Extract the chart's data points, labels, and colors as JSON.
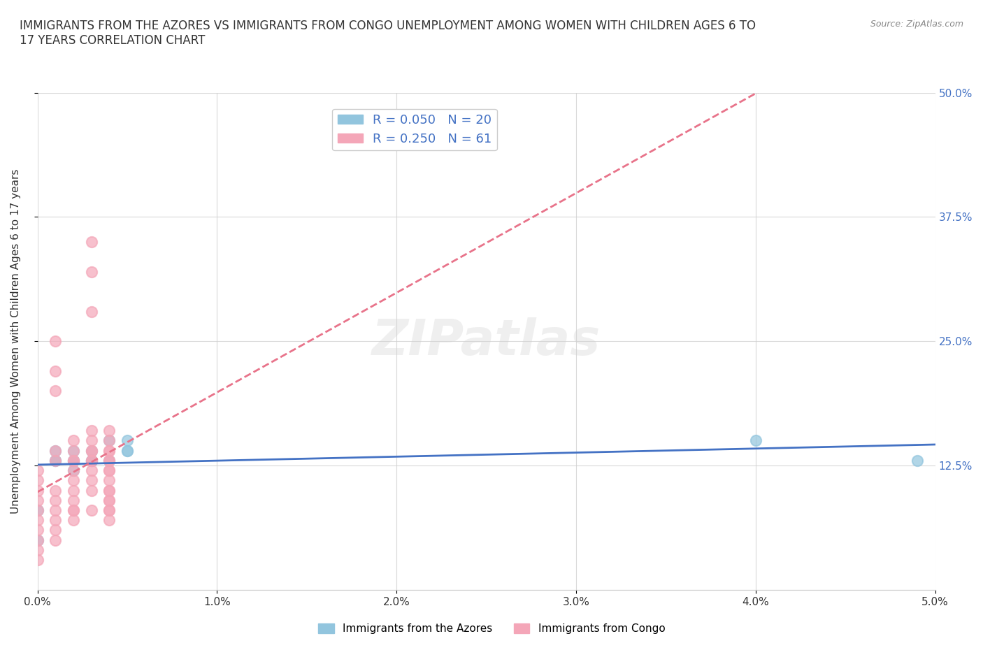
{
  "title": "IMMIGRANTS FROM THE AZORES VS IMMIGRANTS FROM CONGO UNEMPLOYMENT AMONG WOMEN WITH CHILDREN AGES 6 TO\n17 YEARS CORRELATION CHART",
  "source": "Source: ZipAtlas.com",
  "xlabel": "",
  "ylabel": "Unemployment Among Women with Children Ages 6 to 17 years",
  "xlim": [
    0.0,
    0.05
  ],
  "ylim": [
    0.0,
    0.5
  ],
  "xtick_labels": [
    "0.0%",
    "1.0%",
    "2.0%",
    "3.0%",
    "4.0%",
    "5.0%"
  ],
  "xtick_values": [
    0.0,
    0.01,
    0.02,
    0.03,
    0.04,
    0.05
  ],
  "ytick_labels": [
    "12.5%",
    "25.0%",
    "37.5%",
    "50.0%"
  ],
  "ytick_values": [
    0.125,
    0.25,
    0.375,
    0.5
  ],
  "watermark": "ZIPatlas",
  "legend_azores_R": "0.050",
  "legend_azores_N": "20",
  "legend_congo_R": "0.250",
  "legend_congo_N": "61",
  "azores_color": "#92c5de",
  "congo_color": "#f4a6b8",
  "azores_line_color": "#4472c4",
  "congo_line_color": "#e8738a",
  "grid_color": "#d0d0d0",
  "azores_x": [
    0.0,
    0.0,
    0.001,
    0.001,
    0.001,
    0.002,
    0.002,
    0.002,
    0.002,
    0.003,
    0.003,
    0.003,
    0.003,
    0.004,
    0.004,
    0.005,
    0.005,
    0.005,
    0.04,
    0.049
  ],
  "azores_y": [
    0.08,
    0.05,
    0.13,
    0.13,
    0.14,
    0.14,
    0.13,
    0.12,
    0.13,
    0.13,
    0.13,
    0.14,
    0.13,
    0.13,
    0.15,
    0.14,
    0.15,
    0.14,
    0.15,
    0.13
  ],
  "congo_x": [
    0.0,
    0.0,
    0.0,
    0.0,
    0.0,
    0.0,
    0.0,
    0.0,
    0.0,
    0.0,
    0.001,
    0.001,
    0.001,
    0.001,
    0.001,
    0.001,
    0.001,
    0.001,
    0.001,
    0.001,
    0.001,
    0.002,
    0.002,
    0.002,
    0.002,
    0.002,
    0.002,
    0.002,
    0.002,
    0.002,
    0.002,
    0.002,
    0.003,
    0.003,
    0.003,
    0.003,
    0.003,
    0.003,
    0.003,
    0.003,
    0.003,
    0.003,
    0.003,
    0.003,
    0.003,
    0.004,
    0.004,
    0.004,
    0.004,
    0.004,
    0.004,
    0.004,
    0.004,
    0.004,
    0.004,
    0.004,
    0.004,
    0.004,
    0.004,
    0.004,
    0.004
  ],
  "congo_y": [
    0.07,
    0.06,
    0.05,
    0.04,
    0.03,
    0.08,
    0.09,
    0.1,
    0.11,
    0.12,
    0.07,
    0.06,
    0.09,
    0.1,
    0.08,
    0.13,
    0.14,
    0.05,
    0.2,
    0.22,
    0.25,
    0.13,
    0.08,
    0.07,
    0.09,
    0.1,
    0.14,
    0.15,
    0.12,
    0.11,
    0.13,
    0.08,
    0.14,
    0.13,
    0.12,
    0.11,
    0.1,
    0.15,
    0.16,
    0.14,
    0.13,
    0.08,
    0.28,
    0.32,
    0.35,
    0.14,
    0.13,
    0.12,
    0.11,
    0.1,
    0.09,
    0.08,
    0.15,
    0.16,
    0.13,
    0.12,
    0.14,
    0.1,
    0.09,
    0.08,
    0.07
  ]
}
